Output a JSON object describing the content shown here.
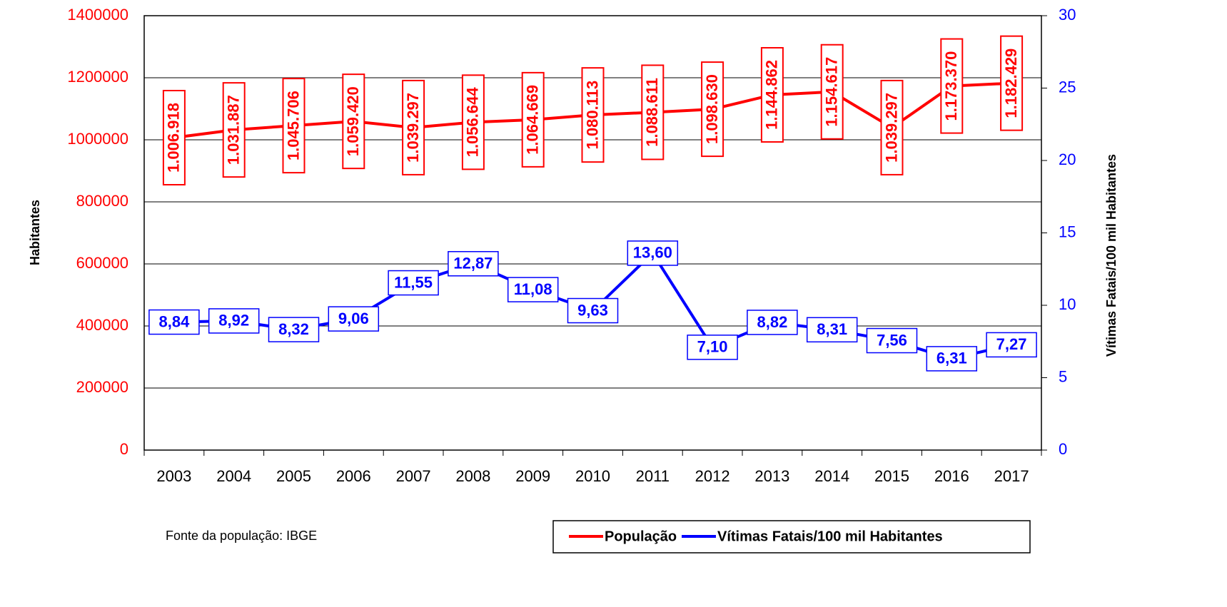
{
  "chart_data": {
    "type": "line",
    "categories": [
      "2003",
      "2004",
      "2005",
      "2006",
      "2007",
      "2008",
      "2009",
      "2010",
      "2011",
      "2012",
      "2013",
      "2014",
      "2015",
      "2016",
      "2017"
    ],
    "series": [
      {
        "name": "População",
        "color": "#ff0000",
        "values": [
          1006918,
          1031887,
          1045706,
          1059420,
          1039297,
          1056644,
          1064669,
          1080113,
          1088611,
          1098630,
          1144862,
          1154617,
          1039297,
          1173370,
          1182429
        ],
        "value_labels": [
          "1.006.918",
          "1.031.887",
          "1.045.706",
          "1.059.420",
          "1.039.297",
          "1.056.644",
          "1.064.669",
          "1.080.113",
          "1.088.611",
          "1.098.630",
          "1.144.862",
          "1.154.617",
          "1.039.297",
          "1.173.370",
          "1.182.429"
        ]
      },
      {
        "name": "Vítimas Fatais/100 mil Habitantes",
        "color": "#0000ff",
        "axis": "y2",
        "values": [
          8.84,
          8.92,
          8.32,
          9.06,
          11.55,
          12.87,
          11.08,
          9.63,
          13.6,
          7.1,
          8.82,
          8.31,
          7.56,
          6.31,
          7.27
        ],
        "value_labels": [
          "8,84",
          "8,92",
          "8,32",
          "9,06",
          "11,55",
          "12,87",
          "11,08",
          "9,63",
          "13,60",
          "7,10",
          "8,82",
          "8,31",
          "7,56",
          "6,31",
          "7,27"
        ]
      }
    ],
    "ylabel": "Habitantes",
    "y2label": "Vítimas Fatais/100 mil Habitantes",
    "ylim": [
      0,
      1400000
    ],
    "yticks": [
      0,
      200000,
      400000,
      600000,
      800000,
      1000000,
      1200000,
      1400000
    ],
    "y2lim": [
      0,
      30
    ],
    "y2ticks": [
      0,
      5,
      10,
      15,
      20,
      25,
      30
    ],
    "grid": true,
    "legend": "bottom-right",
    "note": "Fonte da população: IBGE"
  }
}
